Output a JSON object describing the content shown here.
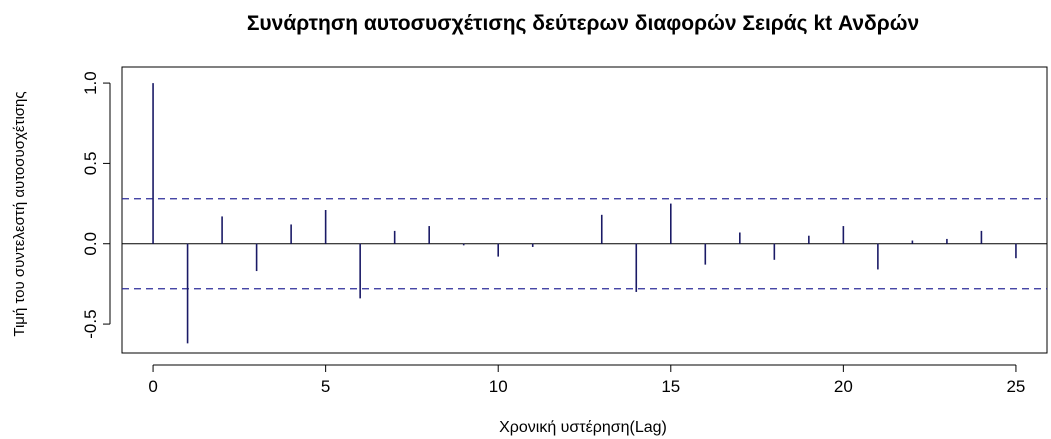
{
  "chart_data": {
    "type": "bar",
    "title": "Συνάρτηση αυτοσυσχέτισης δεύτερων διαφορών Σειράς kt Ανδρών",
    "xlabel": "Χρονική υστέρηση(Lag)",
    "ylabel": "Τιμή του συντελεστή αυτοσυσχέτισης",
    "x": [
      0,
      1,
      2,
      3,
      4,
      5,
      6,
      7,
      8,
      9,
      10,
      11,
      12,
      13,
      14,
      15,
      16,
      17,
      18,
      19,
      20,
      21,
      22,
      23,
      24,
      25
    ],
    "values": [
      1.0,
      -0.62,
      0.17,
      -0.17,
      0.12,
      0.21,
      -0.34,
      0.08,
      0.11,
      -0.01,
      -0.08,
      -0.02,
      0.0,
      0.18,
      -0.3,
      0.25,
      -0.13,
      0.07,
      -0.1,
      0.05,
      0.11,
      -0.16,
      0.02,
      0.03,
      0.08,
      -0.09
    ],
    "confidence_bound": 0.28,
    "xlim": [
      -0.9,
      25.9
    ],
    "ylim": [
      -0.68,
      1.1
    ],
    "xticks": [
      0,
      5,
      10,
      15,
      20,
      25
    ],
    "yticks": [
      -0.5,
      0.0,
      0.5,
      1.0
    ],
    "xtick_labels": [
      "0",
      "5",
      "10",
      "15",
      "20",
      "25"
    ],
    "ytick_labels": [
      "-0.5",
      "0.0",
      "0.5",
      "1.0"
    ],
    "colors": {
      "bars": "#1a1a66",
      "bounds": "#2d2d9a",
      "axes": "#000000"
    },
    "grid": false,
    "legend": "none"
  }
}
